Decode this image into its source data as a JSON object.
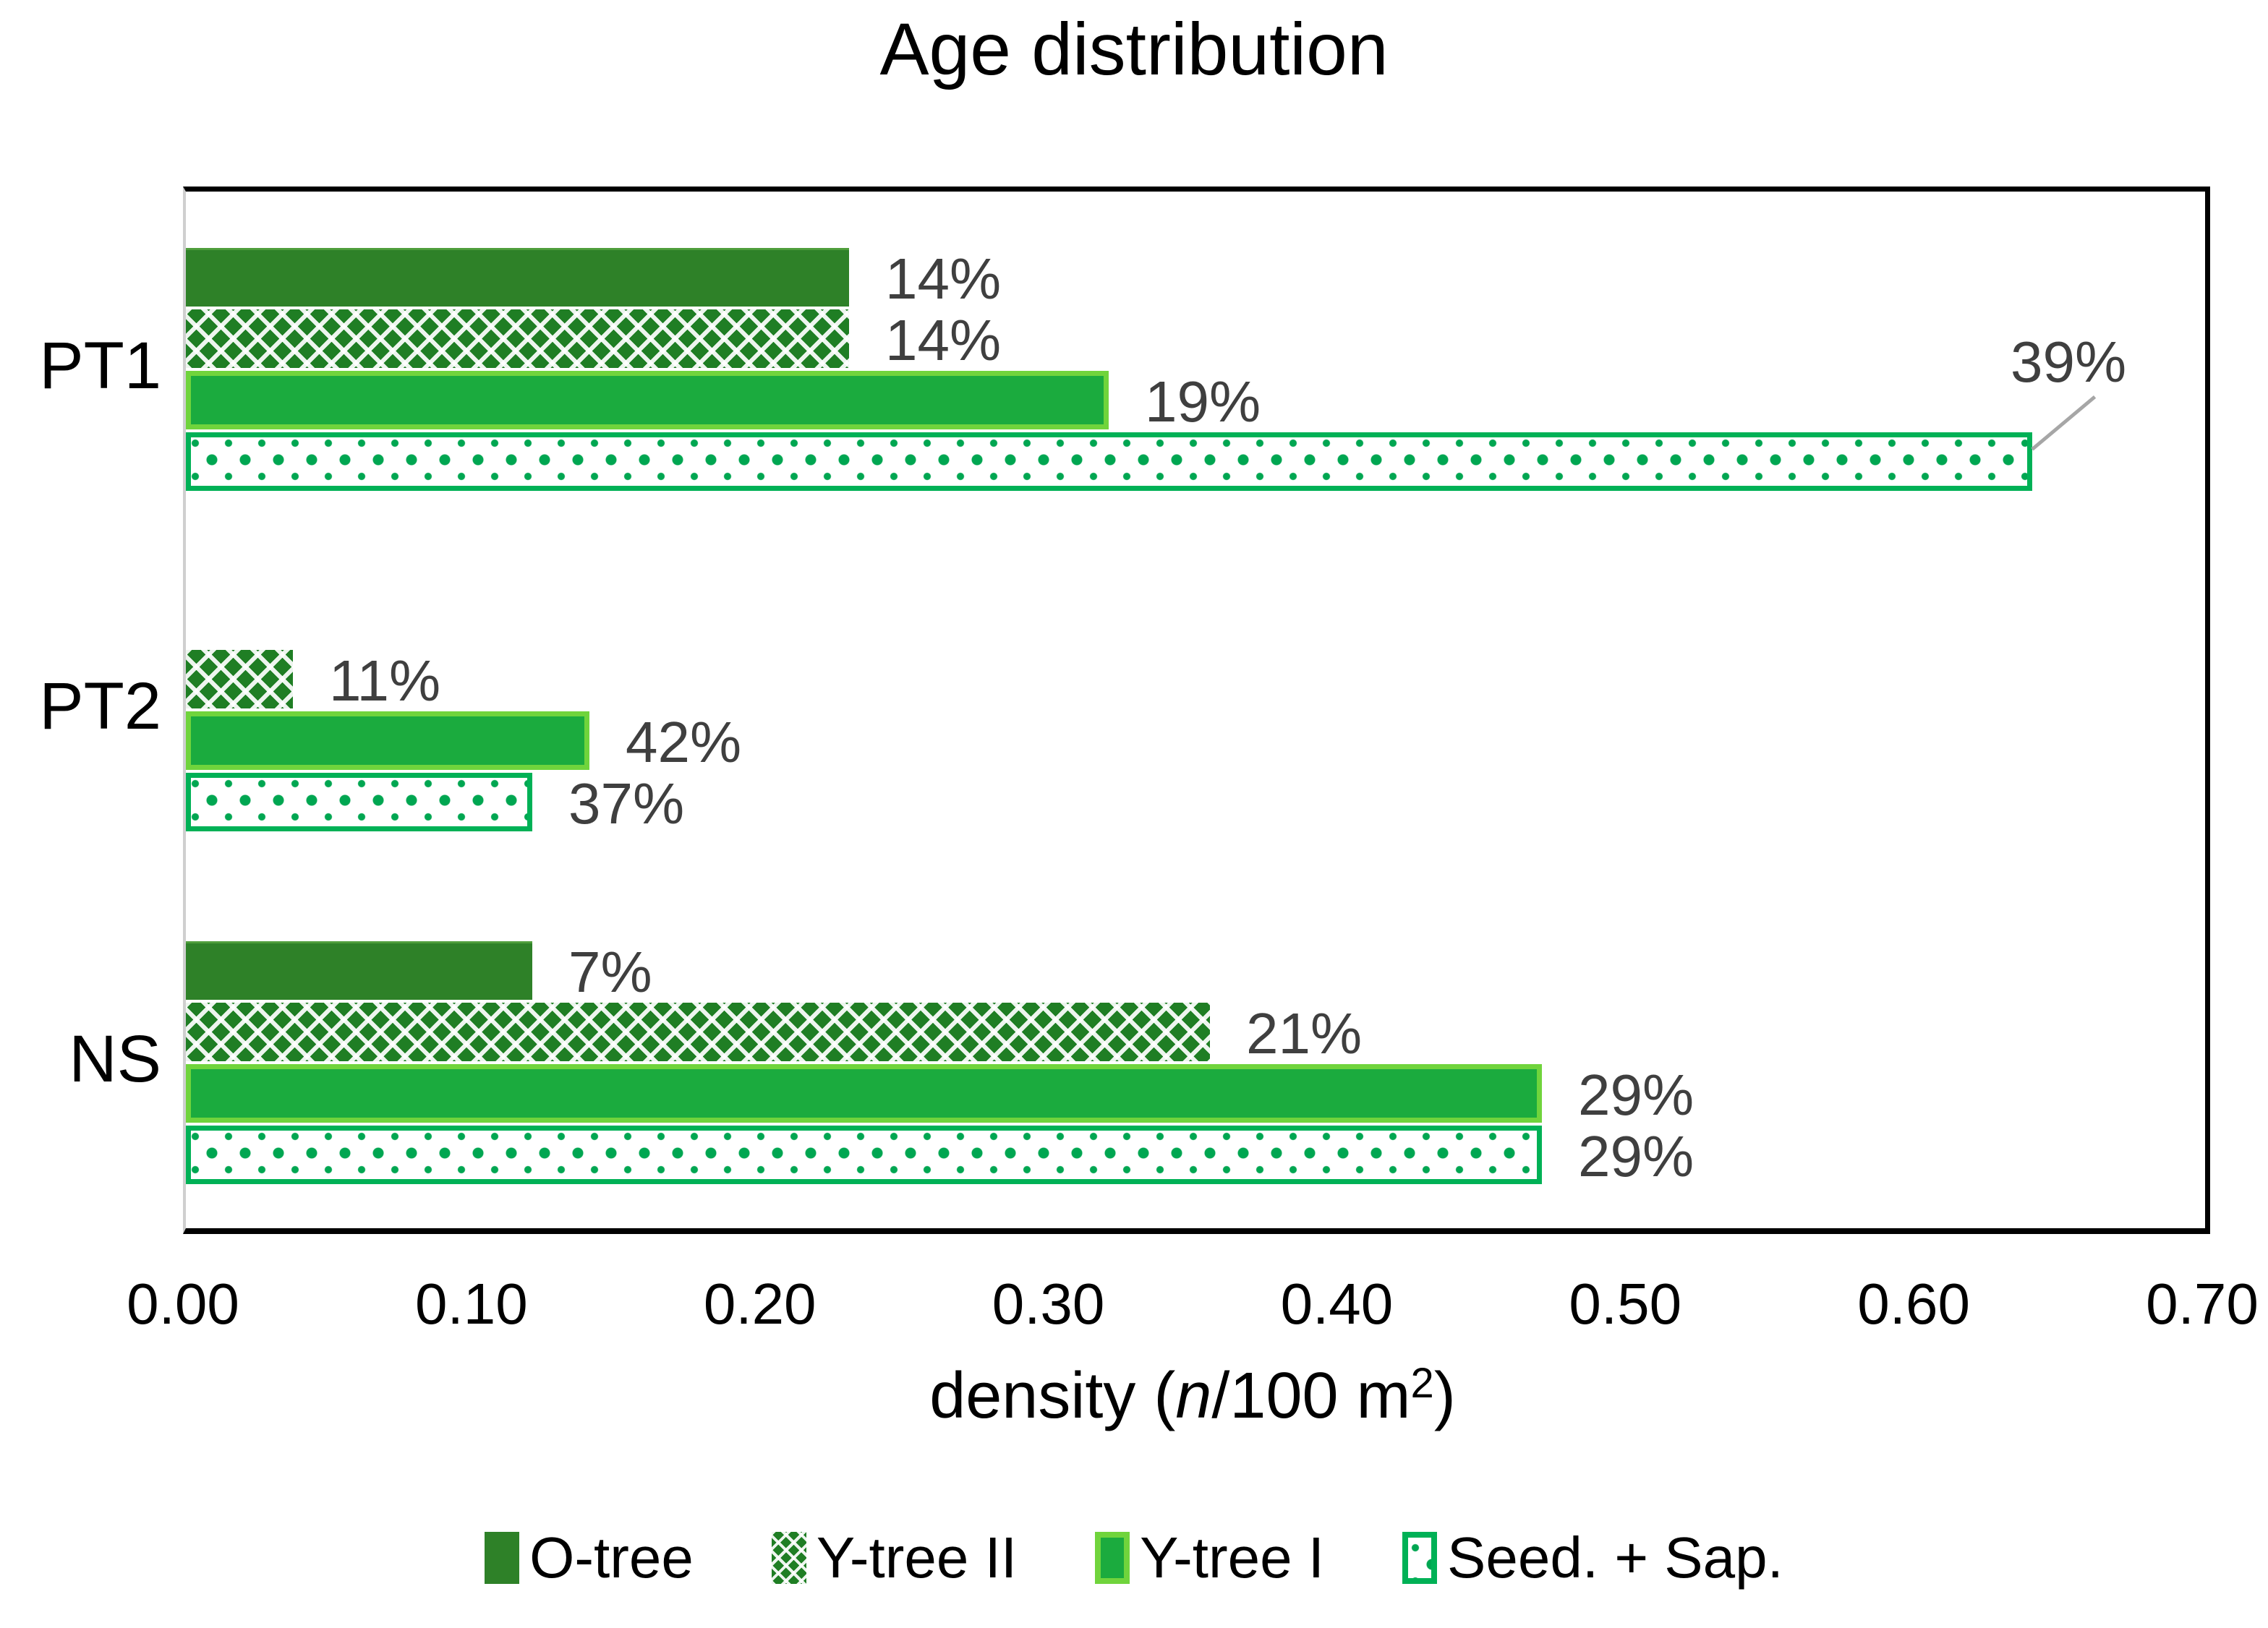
{
  "title": "Age distribution",
  "xlabel": {
    "pre": "density (",
    "var": "n",
    "mid": "/100 m",
    "sup": "2",
    "end": ")"
  },
  "colors": {
    "o_tree_dark_green": "#2e8128",
    "trellis_green": "#1f7e24",
    "y_tree_bright_green": "#1bab3e",
    "y_tree_border_light_green": "#70d43c",
    "seed_sap_emerald": "#00a651",
    "seed_sap_border": "#00b156",
    "data_label_gray": "#3f3f3f",
    "callout_line_gray": "#a6a6a6",
    "plot_border_black": "#000000",
    "axis_line_gray": "#cfcfcf"
  },
  "chart_data": {
    "type": "bar",
    "orientation": "horizontal",
    "title": "Age distribution",
    "xlabel": "density (n/100 m2)",
    "xlim": [
      0.0,
      0.7
    ],
    "xticks": [
      "0.00",
      "0.10",
      "0.20",
      "0.30",
      "0.40",
      "0.50",
      "0.60",
      "0.70"
    ],
    "grid": false,
    "legend_position": "bottom",
    "categories": [
      "PT1",
      "PT2",
      "NS"
    ],
    "series": [
      {
        "name": "O-tree",
        "style": "solid-dark-green",
        "values": [
          0.23,
          null,
          0.12
        ],
        "labels": [
          "14%",
          null,
          "7%"
        ],
        "callouts": [
          false,
          false,
          false
        ]
      },
      {
        "name": "Y-tree II",
        "style": "white-trellis-on-dark-green",
        "values": [
          0.23,
          0.037,
          0.355
        ],
        "labels": [
          "14%",
          "11%",
          "21%"
        ],
        "callouts": [
          false,
          false,
          false
        ]
      },
      {
        "name": "Y-tree I",
        "style": "solid-bright-green-light-border",
        "values": [
          0.32,
          0.14,
          0.47
        ],
        "labels": [
          "19%",
          "42%",
          "29%"
        ],
        "callouts": [
          false,
          false,
          false
        ]
      },
      {
        "name": "Seed. + Sap.",
        "style": "green-dots-on-white",
        "values": [
          0.64,
          0.12,
          0.47
        ],
        "labels": [
          "39%",
          "37%",
          "29%"
        ],
        "callouts": [
          true,
          false,
          false
        ]
      }
    ]
  }
}
